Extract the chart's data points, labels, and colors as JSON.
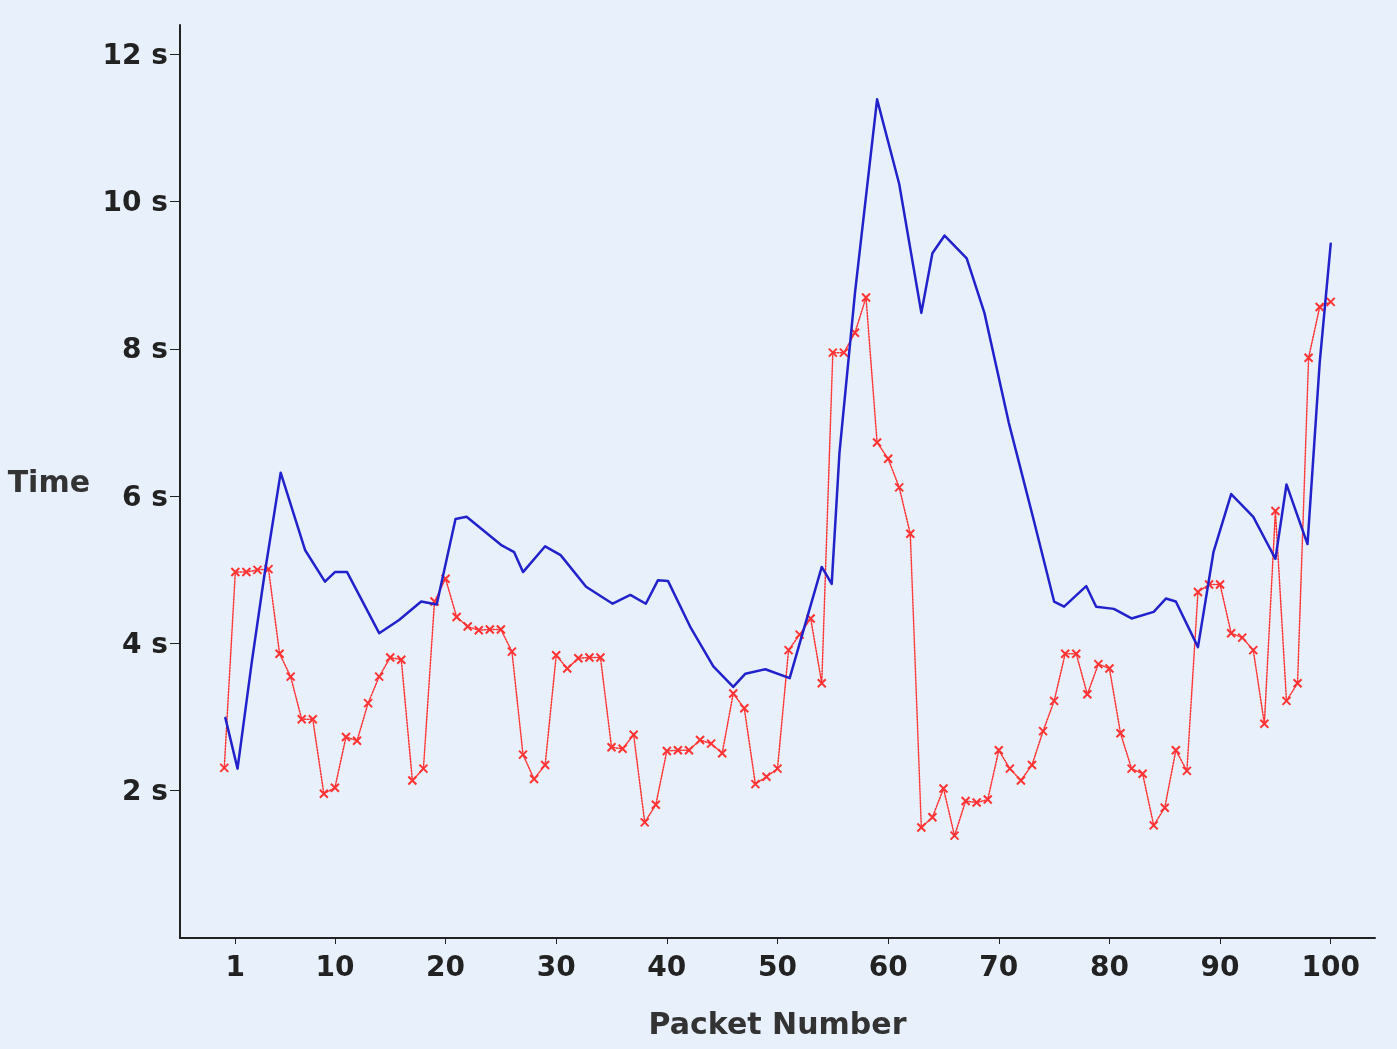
{
  "chart_data": {
    "type": "line",
    "xlabel": "Packet Number",
    "ylabel": "Time",
    "xlim": [
      -4,
      104
    ],
    "ylim": [
      0,
      12.4
    ],
    "xticks": [
      1,
      10,
      20,
      30,
      40,
      50,
      60,
      70,
      80,
      90,
      100
    ],
    "yticks": [
      {
        "value": 2,
        "label": "2 s"
      },
      {
        "value": 4,
        "label": "4 s"
      },
      {
        "value": 6,
        "label": "6 s"
      },
      {
        "value": 8,
        "label": "8 s"
      },
      {
        "value": 10,
        "label": "10 s"
      },
      {
        "value": 12,
        "label": "12 s"
      }
    ],
    "grid": false,
    "series": [
      {
        "color": "#ff3333",
        "marker": "cross",
        "line_style": "dotted",
        "x": [
          0,
          1,
          2,
          3,
          4,
          5,
          6,
          7,
          8,
          9,
          10,
          11,
          12,
          13,
          14,
          15,
          16,
          17,
          18,
          19,
          20,
          21,
          22,
          23,
          24,
          25,
          26,
          27,
          28,
          29,
          30,
          31,
          32,
          33,
          34,
          35,
          36,
          37,
          38,
          39,
          40,
          41,
          42,
          43,
          44,
          45,
          46,
          47,
          48,
          49,
          50,
          51,
          52,
          53,
          54,
          55,
          56,
          57,
          58,
          59,
          60,
          61,
          62,
          63,
          64,
          65,
          66,
          67,
          68,
          69,
          70,
          71,
          72,
          73,
          74,
          75,
          76,
          77,
          78,
          79,
          80,
          81,
          82,
          83,
          84,
          85,
          86,
          87,
          88,
          89,
          90,
          91,
          92,
          93,
          94,
          95,
          96,
          97,
          98,
          99,
          100
        ],
        "values": [
          2.31,
          4.97,
          4.97,
          5.0,
          5.01,
          3.86,
          3.55,
          2.97,
          2.97,
          1.96,
          2.04,
          2.73,
          2.68,
          3.19,
          3.55,
          3.81,
          3.78,
          2.14,
          2.3,
          4.57,
          4.88,
          4.36,
          4.23,
          4.18,
          4.19,
          4.19,
          3.89,
          2.49,
          2.16,
          2.35,
          3.84,
          3.66,
          3.8,
          3.81,
          3.81,
          2.59,
          2.57,
          2.76,
          1.57,
          1.81,
          2.54,
          2.55,
          2.55,
          2.69,
          2.64,
          2.51,
          3.32,
          3.12,
          2.09,
          2.19,
          2.3,
          3.91,
          4.12,
          4.34,
          3.46,
          7.95,
          7.95,
          8.22,
          8.7,
          6.73,
          6.51,
          6.12,
          5.49,
          1.5,
          1.64,
          2.03,
          1.39,
          1.86,
          1.84,
          1.88,
          2.55,
          2.3,
          2.14,
          2.35,
          2.81,
          3.22,
          3.86,
          3.86,
          3.31,
          3.72,
          3.66,
          2.78,
          2.3,
          2.23,
          1.53,
          1.77,
          2.55,
          2.27,
          4.7,
          4.8,
          4.8,
          4.14,
          4.08,
          3.91,
          2.91,
          5.8,
          3.22,
          3.46,
          7.88,
          8.57,
          8.64
        ]
      },
      {
        "color": "#2222cc",
        "marker": "none",
        "line_style": "solid",
        "x": [
          0.1,
          1.2,
          2.5,
          3.6,
          5.1,
          7.3,
          9.1,
          10,
          11.1,
          14,
          15.8,
          17.8,
          19.2,
          20.9,
          21.9,
          25,
          26.2,
          27,
          29,
          30.4,
          32.7,
          35.1,
          36.7,
          38.1,
          39.2,
          40.1,
          42.1,
          44.2,
          46,
          47.1,
          48.9,
          51.1,
          54,
          54.9,
          55.6,
          57,
          59,
          61,
          63,
          64,
          65.1,
          67.1,
          68.7,
          70.9,
          73.2,
          75,
          75.9,
          77.9,
          78.8,
          80.4,
          82,
          84,
          85.1,
          86,
          88,
          89.4,
          91,
          93,
          95,
          96,
          97.9,
          99,
          99.5,
          100
        ],
        "values": [
          2.99,
          2.3,
          3.76,
          4.9,
          6.32,
          5.27,
          4.84,
          4.97,
          4.97,
          4.14,
          4.32,
          4.57,
          4.53,
          5.69,
          5.72,
          5.34,
          5.24,
          4.97,
          5.32,
          5.2,
          4.77,
          4.54,
          4.66,
          4.54,
          4.86,
          4.85,
          4.23,
          3.69,
          3.41,
          3.59,
          3.65,
          3.53,
          5.04,
          4.81,
          6.59,
          8.76,
          11.39,
          10.24,
          8.49,
          9.3,
          9.54,
          9.23,
          8.49,
          7.0,
          5.65,
          4.57,
          4.5,
          4.78,
          4.5,
          4.47,
          4.34,
          4.43,
          4.61,
          4.57,
          3.95,
          5.24,
          6.03,
          5.72,
          5.15,
          6.16,
          5.35,
          7.81,
          8.62,
          9.43
        ]
      }
    ]
  }
}
